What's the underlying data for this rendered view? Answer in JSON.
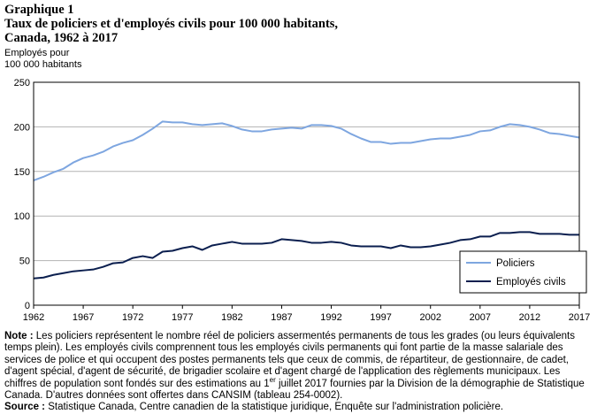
{
  "header": {
    "label": "Graphique  1",
    "title_line1": "Taux de policiers et d'employés civils pour 100 000 habitants,",
    "title_line2": "Canada, 1962 à 2017"
  },
  "chart_data": {
    "type": "line",
    "title": "Taux de policiers et d'employés civils pour 100 000 habitants, Canada, 1962 à 2017",
    "ylabel_line1": "Employés pour",
    "ylabel_line2": "100 000 habitants",
    "xlabel": "",
    "ylim": [
      0,
      250
    ],
    "yticks": [
      0,
      50,
      100,
      150,
      200,
      250
    ],
    "xticks": [
      1962,
      1967,
      1972,
      1977,
      1982,
      1987,
      1992,
      1997,
      2002,
      2007,
      2012,
      2017
    ],
    "grid": true,
    "legend_position": "bottom-right",
    "x": [
      1962,
      1963,
      1964,
      1965,
      1966,
      1967,
      1968,
      1969,
      1970,
      1971,
      1972,
      1973,
      1974,
      1975,
      1976,
      1977,
      1978,
      1979,
      1980,
      1981,
      1982,
      1983,
      1984,
      1985,
      1986,
      1987,
      1988,
      1989,
      1990,
      1991,
      1992,
      1993,
      1994,
      1995,
      1996,
      1997,
      1998,
      1999,
      2000,
      2001,
      2002,
      2003,
      2004,
      2005,
      2006,
      2007,
      2008,
      2009,
      2010,
      2011,
      2012,
      2013,
      2014,
      2015,
      2016,
      2017
    ],
    "series": [
      {
        "name": "Policiers",
        "color": "#7ea6e0",
        "values": [
          140,
          144,
          149,
          153,
          160,
          165,
          168,
          172,
          178,
          182,
          185,
          191,
          198,
          206,
          205,
          205,
          203,
          202,
          203,
          204,
          201,
          197,
          195,
          195,
          197,
          198,
          199,
          198,
          202,
          202,
          201,
          198,
          192,
          187,
          183,
          183,
          181,
          182,
          182,
          184,
          186,
          187,
          187,
          189,
          191,
          195,
          196,
          200,
          203,
          202,
          200,
          197,
          193,
          192,
          190,
          188
        ]
      },
      {
        "name": "Employés civils",
        "color": "#0b1f4f",
        "values": [
          30,
          31,
          34,
          36,
          38,
          39,
          40,
          43,
          47,
          48,
          53,
          55,
          53,
          60,
          61,
          64,
          66,
          62,
          67,
          69,
          71,
          69,
          69,
          69,
          70,
          74,
          73,
          72,
          70,
          70,
          71,
          70,
          67,
          66,
          66,
          66,
          64,
          67,
          65,
          65,
          66,
          68,
          70,
          73,
          74,
          77,
          77,
          81,
          81,
          82,
          82,
          80,
          80,
          80,
          79,
          79
        ]
      }
    ]
  },
  "notes": {
    "note_label": "Note :",
    "note_text_a": " Les policiers représentent le nombre réel de policiers assermentés permanents de tous les grades (ou leurs équivalents temps plein). Les employés civils comprennent tous les employés civils permanents qui font partie de la masse salariale des services de police et qui occupent des postes permanents tels que ceux de commis, de répartiteur, de gestionnaire, de cadet, d'agent spécial, d'agent de sécurité, de brigadier scolaire et d'agent chargé de l'application des règlements municipaux. Les chiffres de population sont fondés sur des estimations au 1",
    "note_sup": "er",
    "note_text_b": " juillet 2017 fournies par la Division de la démographie de Statistique Canada. D'autres données sont offertes dans CANSIM (tableau 254-0002).",
    "source_label": "Source :",
    "source_text": " Statistique Canada, Centre canadien de la statistique juridique, Enquête sur l'administration policière."
  }
}
